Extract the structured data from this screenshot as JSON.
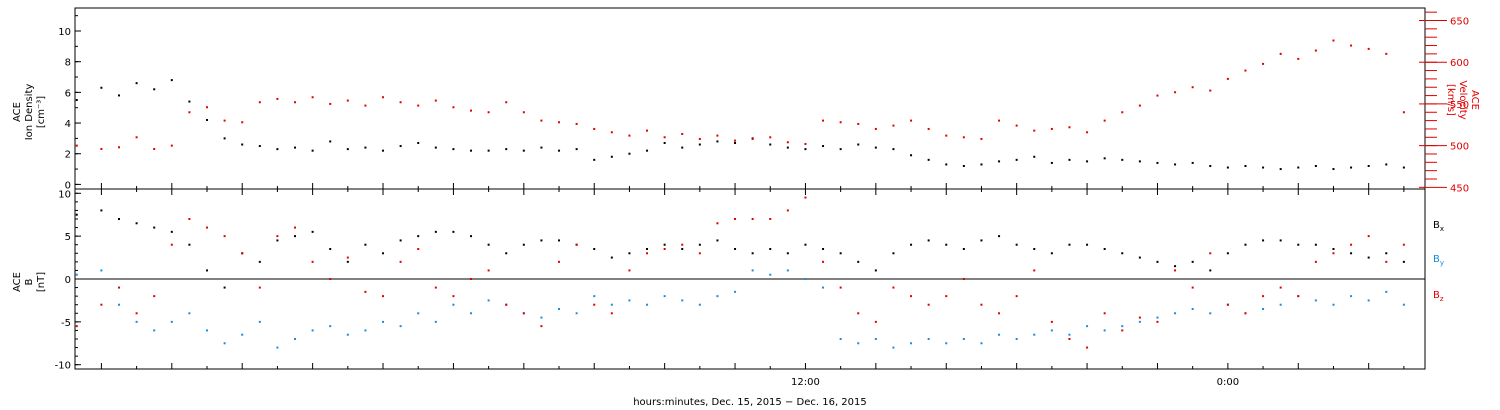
{
  "colors": {
    "axis": "#000000",
    "density_series": "#000000",
    "velocity_series": "#e00000",
    "bx": "#000000",
    "by": "#1a8be0",
    "bz": "#e00000"
  },
  "xlabel": "hours:minutes, Dec. 15, 2015 − Dec. 16, 2015",
  "chart_data": [
    {
      "type": "scatter",
      "panel": "top",
      "ylabel_left": [
        "ACE",
        "Ion Density",
        "[cm⁻³]"
      ],
      "ylabel_right": [
        "ACE",
        "Velocity",
        "[km/s]"
      ],
      "x_unit": "hours since 2015-12-15 00:00",
      "xlim": [
        -8.75,
        29.6
      ],
      "x_tick_labels": [
        {
          "x": 12,
          "label": "12:00"
        },
        {
          "x": 24,
          "label": "0:00"
        }
      ],
      "ylim_left": [
        -0.3,
        11.5
      ],
      "yticks_left": [
        0,
        2,
        4,
        6,
        8,
        10
      ],
      "ylim_right": [
        448,
        665
      ],
      "yticks_right": [
        450,
        500,
        550,
        600,
        650
      ],
      "series": [
        {
          "axis": "left",
          "color": "#000000",
          "x": [
            -8.7,
            -8.0,
            -7.5,
            -7.0,
            -6.5,
            -6.0,
            -5.5,
            -5.0,
            -4.5,
            -4.0,
            -3.5,
            -3.0,
            -2.5,
            -2.0,
            -1.5,
            -1.0,
            -0.5,
            0.0,
            0.5,
            1.0,
            1.5,
            2.0,
            2.5,
            3.0,
            3.5,
            4.0,
            4.5,
            5.0,
            5.5,
            6.0,
            6.5,
            7.0,
            7.5,
            8.0,
            8.5,
            9.0,
            9.5,
            10.0,
            10.5,
            11.0,
            11.5,
            12.0,
            12.5,
            13.0,
            13.5,
            14.0,
            14.5,
            15.0,
            15.5,
            16.0,
            16.5,
            17.0,
            17.5,
            18.0,
            18.5,
            19.0,
            19.5,
            20.0,
            20.5,
            21.0,
            21.5,
            22.0,
            22.5,
            23.0,
            23.5,
            24.0,
            24.5,
            25.0,
            25.5,
            26.0,
            26.5,
            27.0,
            27.5,
            28.0,
            28.5,
            29.0
          ],
          "y": [
            5.5,
            6.3,
            5.8,
            6.6,
            6.2,
            6.8,
            5.4,
            4.2,
            3.0,
            2.6,
            2.5,
            2.3,
            2.4,
            2.2,
            2.8,
            2.3,
            2.4,
            2.2,
            2.5,
            2.7,
            2.4,
            2.3,
            2.2,
            2.2,
            2.3,
            2.2,
            2.4,
            2.2,
            2.3,
            1.6,
            1.8,
            2.0,
            2.2,
            2.7,
            2.4,
            2.6,
            2.8,
            2.7,
            3.0,
            2.6,
            2.4,
            2.3,
            2.5,
            2.3,
            2.6,
            2.4,
            2.3,
            1.9,
            1.6,
            1.3,
            1.2,
            1.3,
            1.5,
            1.6,
            1.8,
            1.4,
            1.6,
            1.5,
            1.7,
            1.6,
            1.5,
            1.4,
            1.3,
            1.4,
            1.2,
            1.1,
            1.2,
            1.1,
            1.0,
            1.1,
            1.2,
            1.0,
            1.1,
            1.2,
            1.3,
            1.1
          ]
        },
        {
          "axis": "right",
          "color": "#e00000",
          "x": [
            -8.7,
            -8.0,
            -7.5,
            -7.0,
            -6.5,
            -6.0,
            -5.5,
            -5.0,
            -4.5,
            -4.0,
            -3.5,
            -3.0,
            -2.5,
            -2.0,
            -1.5,
            -1.0,
            -0.5,
            0.0,
            0.5,
            1.0,
            1.5,
            2.0,
            2.5,
            3.0,
            3.5,
            4.0,
            4.5,
            5.0,
            5.5,
            6.0,
            6.5,
            7.0,
            7.5,
            8.0,
            8.5,
            9.0,
            9.5,
            10.0,
            10.5,
            11.0,
            11.5,
            12.0,
            12.5,
            13.0,
            13.5,
            14.0,
            14.5,
            15.0,
            15.5,
            16.0,
            16.5,
            17.0,
            17.5,
            18.0,
            18.5,
            19.0,
            19.5,
            20.0,
            20.5,
            21.0,
            21.5,
            22.0,
            22.5,
            23.0,
            23.5,
            24.0,
            24.5,
            25.0,
            25.5,
            26.0,
            26.5,
            27.0,
            27.5,
            28.0,
            28.5,
            29.0
          ],
          "y": [
            500,
            496,
            498,
            510,
            496,
            500,
            540,
            546,
            530,
            528,
            552,
            556,
            552,
            558,
            550,
            554,
            548,
            558,
            552,
            548,
            554,
            546,
            542,
            540,
            552,
            540,
            530,
            528,
            526,
            520,
            516,
            512,
            518,
            510,
            514,
            508,
            512,
            506,
            508,
            510,
            504,
            502,
            530,
            528,
            526,
            520,
            524,
            530,
            520,
            512,
            510,
            508,
            530,
            524,
            518,
            520,
            522,
            516,
            530,
            540,
            548,
            560,
            564,
            570,
            566,
            580,
            590,
            598,
            610,
            604,
            614,
            626,
            620,
            616,
            610,
            540
          ]
        }
      ]
    },
    {
      "type": "scatter",
      "panel": "bottom",
      "ylabel_left": [
        "ACE",
        "B",
        "[nT]"
      ],
      "x_unit": "hours since 2015-12-15 00:00",
      "xlim": [
        -8.75,
        29.6
      ],
      "x_tick_labels": [
        {
          "x": 12,
          "label": "12:00"
        },
        {
          "x": 24,
          "label": "0:00"
        }
      ],
      "ylim": [
        -10.5,
        10.5
      ],
      "yticks": [
        -10,
        -5,
        0,
        5,
        10
      ],
      "zero_line": true,
      "series": [
        {
          "name": "B",
          "name_sub": "x",
          "color": "#000000",
          "x": [
            -8.7,
            -8.0,
            -7.5,
            -7.0,
            -6.5,
            -6.0,
            -5.5,
            -5.0,
            -4.5,
            -4.0,
            -3.5,
            -3.0,
            -2.5,
            -2.0,
            -1.5,
            -1.0,
            -0.5,
            0.0,
            0.5,
            1.0,
            1.5,
            2.0,
            2.5,
            3.0,
            3.5,
            4.0,
            4.5,
            5.0,
            5.5,
            6.0,
            6.5,
            7.0,
            7.5,
            8.0,
            8.5,
            9.0,
            9.5,
            10.0,
            10.5,
            11.0,
            11.5,
            12.0,
            12.5,
            13.0,
            13.5,
            14.0,
            14.5,
            15.0,
            15.5,
            16.0,
            16.5,
            17.0,
            17.5,
            18.0,
            18.5,
            19.0,
            19.5,
            20.0,
            20.5,
            21.0,
            21.5,
            22.0,
            22.5,
            23.0,
            23.5,
            24.0,
            24.5,
            25.0,
            25.5,
            26.0,
            26.5,
            27.0,
            27.5,
            28.0,
            28.5,
            29.0
          ],
          "y": [
            7.5,
            8.0,
            7.0,
            6.5,
            6.0,
            5.5,
            4.0,
            1.0,
            -1.0,
            3.0,
            2.0,
            4.5,
            5.0,
            5.5,
            3.5,
            2.0,
            4.0,
            3.0,
            4.5,
            5.0,
            5.5,
            5.5,
            5.0,
            4.0,
            3.0,
            4.0,
            4.5,
            4.5,
            4.0,
            3.5,
            2.5,
            3.0,
            3.5,
            4.0,
            3.5,
            4.0,
            4.5,
            3.5,
            3.0,
            3.5,
            3.0,
            4.0,
            3.5,
            3.0,
            2.0,
            1.0,
            3.0,
            4.0,
            4.5,
            4.0,
            3.5,
            4.5,
            5.0,
            4.0,
            3.5,
            3.0,
            4.0,
            4.0,
            3.5,
            3.0,
            2.5,
            2.0,
            1.5,
            2.0,
            1.0,
            3.0,
            4.0,
            4.5,
            4.5,
            4.0,
            4.0,
            3.5,
            3.0,
            2.5,
            3.0,
            2.0
          ]
        },
        {
          "name": "B",
          "name_sub": "y",
          "color": "#1a8be0",
          "x": [
            -8.7,
            -8.0,
            -7.5,
            -7.0,
            -6.5,
            -6.0,
            -5.5,
            -5.0,
            -4.5,
            -4.0,
            -3.5,
            -3.0,
            -2.5,
            -2.0,
            -1.5,
            -1.0,
            -0.5,
            0.0,
            0.5,
            1.0,
            1.5,
            2.0,
            2.5,
            3.0,
            3.5,
            4.0,
            4.5,
            5.0,
            5.5,
            6.0,
            6.5,
            7.0,
            7.5,
            8.0,
            8.5,
            9.0,
            9.5,
            10.0,
            10.5,
            11.0,
            11.5,
            12.0,
            12.5,
            13.0,
            13.5,
            14.0,
            14.5,
            15.0,
            15.5,
            16.0,
            16.5,
            17.0,
            17.5,
            18.0,
            18.5,
            19.0,
            19.5,
            20.0,
            20.5,
            21.0,
            21.5,
            22.0,
            22.5,
            23.0,
            23.5,
            24.0,
            24.5,
            25.0,
            25.5,
            26.0,
            26.5,
            27.0,
            27.5,
            28.0,
            28.5,
            29.0
          ],
          "y": [
            0.5,
            1.0,
            -3.0,
            -5.0,
            -6.0,
            -5.0,
            -4.0,
            -6.0,
            -7.5,
            -6.5,
            -5.0,
            -8.0,
            -7.0,
            -6.0,
            -5.5,
            -6.5,
            -6.0,
            -5.0,
            -5.5,
            -4.0,
            -5.0,
            -3.0,
            -4.0,
            -2.5,
            -3.0,
            -4.0,
            -4.5,
            -3.5,
            -4.0,
            -2.0,
            -3.0,
            -2.5,
            -3.0,
            -2.0,
            -2.5,
            -3.0,
            -2.0,
            -1.5,
            1.0,
            0.5,
            1.0,
            0.0,
            -1.0,
            -7.0,
            -7.5,
            -7.0,
            -8.0,
            -7.5,
            -7.0,
            -7.5,
            -7.0,
            -7.5,
            -6.5,
            -7.0,
            -6.5,
            -6.0,
            -6.5,
            -5.5,
            -6.0,
            -5.5,
            -5.0,
            -4.5,
            -4.0,
            -3.5,
            -4.0,
            -3.0,
            -4.0,
            -3.5,
            -3.0,
            -2.0,
            -2.5,
            -3.0,
            -2.0,
            -2.5,
            -1.5,
            -3.0
          ]
        },
        {
          "name": "B",
          "name_sub": "z",
          "color": "#e00000",
          "x": [
            -8.7,
            -8.0,
            -7.5,
            -7.0,
            -6.5,
            -6.0,
            -5.5,
            -5.0,
            -4.5,
            -4.0,
            -3.5,
            -3.0,
            -2.5,
            -2.0,
            -1.5,
            -1.0,
            -0.5,
            0.0,
            0.5,
            1.0,
            1.5,
            2.0,
            2.5,
            3.0,
            3.5,
            4.0,
            4.5,
            5.0,
            5.5,
            6.0,
            6.5,
            7.0,
            7.5,
            8.0,
            8.5,
            9.0,
            9.5,
            10.0,
            10.5,
            11.0,
            11.5,
            12.0,
            12.5,
            13.0,
            13.5,
            14.0,
            14.5,
            15.0,
            15.5,
            16.0,
            16.5,
            17.0,
            17.5,
            18.0,
            18.5,
            19.0,
            19.5,
            20.0,
            20.5,
            21.0,
            21.5,
            22.0,
            22.5,
            23.0,
            23.5,
            24.0,
            24.5,
            25.0,
            25.5,
            26.0,
            26.5,
            27.0,
            27.5,
            28.0,
            28.5,
            29.0
          ],
          "y": [
            -5.5,
            -3.0,
            -1.0,
            -4.0,
            -2.0,
            4.0,
            7.0,
            6.0,
            5.0,
            3.0,
            -1.0,
            5.0,
            6.0,
            2.0,
            0.0,
            2.5,
            -1.5,
            -2.0,
            2.0,
            3.5,
            -1.0,
            -2.0,
            0.0,
            1.0,
            -3.0,
            -4.0,
            -5.5,
            2.0,
            4.0,
            -3.0,
            -4.0,
            1.0,
            3.0,
            3.5,
            4.0,
            3.0,
            6.5,
            7.0,
            7.0,
            7.0,
            8.0,
            9.5,
            2.0,
            -1.0,
            -4.0,
            -5.0,
            -1.0,
            -2.0,
            -3.0,
            -2.0,
            0.0,
            -3.0,
            -4.0,
            -2.0,
            1.0,
            -5.0,
            -7.0,
            -8.0,
            -4.0,
            -6.0,
            -4.5,
            -5.0,
            1.0,
            -1.0,
            3.0,
            -3.0,
            -4.0,
            -2.0,
            -1.0,
            -2.0,
            2.0,
            3.0,
            4.0,
            5.0,
            2.0,
            4.0
          ]
        }
      ]
    }
  ]
}
